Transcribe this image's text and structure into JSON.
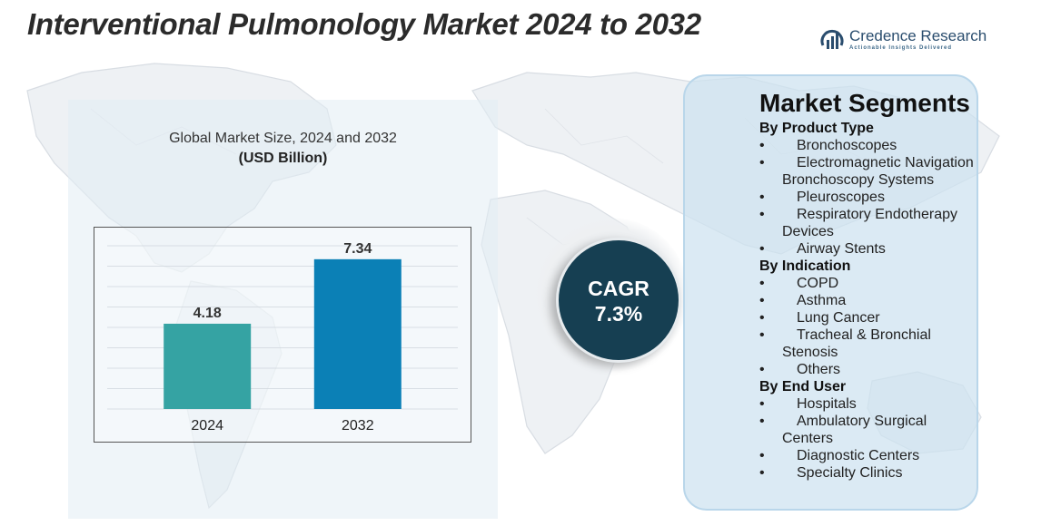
{
  "title": "Interventional Pulmonology Market 2024 to 2032",
  "brand": {
    "name": "Credence Research",
    "tagline": "Actionable Insights Delivered",
    "logo_icon": "bar-chart-arc-icon",
    "colors": {
      "primary": "#2a4d6e"
    }
  },
  "chart_data": {
    "type": "bar",
    "title": "Global Market Size, 2024 and 2032",
    "subtitle": "(USD Billion)",
    "categories": [
      "2024",
      "2032"
    ],
    "values": [
      4.18,
      7.34
    ],
    "value_labels": [
      "4.18",
      "7.34"
    ],
    "colors": [
      "#35a3a3",
      "#0b80b6"
    ],
    "ylim": [
      0,
      8
    ],
    "grid": true
  },
  "cagr": {
    "label": "CAGR",
    "value": "7.3%"
  },
  "segments": {
    "title": "Market Segments",
    "groups": [
      {
        "name": "By Product Type",
        "items": [
          "Bronchoscopes",
          "Electromagnetic Navigation Bronchoscopy Systems",
          "Pleuroscopes",
          "Respiratory Endotherapy Devices",
          "Airway Stents"
        ]
      },
      {
        "name": "By Indication",
        "items": [
          "COPD",
          "Asthma",
          "Lung Cancer",
          "Tracheal & Bronchial Stenosis",
          "Others"
        ]
      },
      {
        "name": "By End User",
        "items": [
          "Hospitals",
          "Ambulatory Surgical Centers",
          "Diagnostic Centers",
          "Specialty Clinics"
        ]
      }
    ],
    "bullet": "•"
  }
}
